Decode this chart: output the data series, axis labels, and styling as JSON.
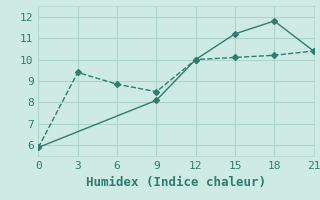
{
  "xlabel": "Humidex (Indice chaleur)",
  "ylabel": "",
  "background_color": "#ceeae4",
  "line_color": "#2e7d6e",
  "grid_color": "#aed4cc",
  "line1_x": [
    0,
    3,
    6,
    9,
    12,
    15,
    18,
    21
  ],
  "line1_y": [
    5.9,
    9.4,
    8.85,
    8.5,
    10.0,
    10.1,
    10.2,
    10.4
  ],
  "line2_x": [
    0,
    9,
    12,
    15,
    18,
    21
  ],
  "line2_y": [
    5.9,
    8.1,
    10.0,
    11.2,
    11.8,
    10.4
  ],
  "xlim": [
    0,
    21
  ],
  "ylim": [
    5.5,
    12.5
  ],
  "xticks": [
    0,
    3,
    6,
    9,
    12,
    15,
    18,
    21
  ],
  "yticks": [
    6,
    7,
    8,
    9,
    10,
    11,
    12
  ],
  "marker": "D",
  "marker_size": 3,
  "font_size": 8,
  "xlabel_fontsize": 9
}
